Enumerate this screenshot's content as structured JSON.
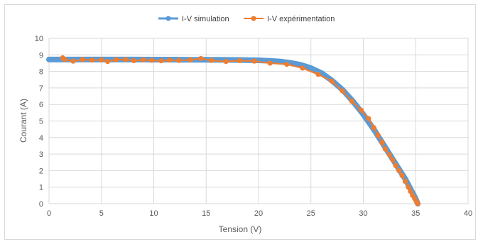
{
  "chart_data": {
    "type": "line",
    "xlabel": "Tension (V)",
    "ylabel": "Courant (A)",
    "xlim": [
      0,
      40
    ],
    "ylim": [
      0,
      10
    ],
    "xticks": [
      0,
      5,
      10,
      15,
      20,
      25,
      30,
      35,
      40
    ],
    "yticks": [
      0,
      1,
      2,
      3,
      4,
      5,
      6,
      7,
      8,
      9,
      10
    ],
    "grid": true,
    "legend_position": "top",
    "series": [
      {
        "name": "I-V simulation",
        "color": "#5b9bd5",
        "marker": "circle",
        "x": [
          0,
          2,
          4,
          6,
          8,
          10,
          12,
          14,
          16,
          18,
          20,
          21,
          22,
          23,
          24,
          25,
          26,
          27,
          28,
          29,
          30,
          31,
          32,
          33,
          34,
          34.5,
          35,
          35.2
        ],
        "y": [
          8.72,
          8.72,
          8.72,
          8.72,
          8.72,
          8.71,
          8.71,
          8.7,
          8.7,
          8.69,
          8.67,
          8.64,
          8.6,
          8.52,
          8.4,
          8.2,
          7.9,
          7.45,
          6.9,
          6.2,
          5.4,
          4.5,
          3.5,
          2.5,
          1.5,
          0.9,
          0.3,
          0
        ]
      },
      {
        "name": "I-V expérimentation",
        "color": "#ed7d31",
        "marker": "circle",
        "x": [
          1.3,
          1.5,
          2.3,
          3.2,
          4.1,
          5.0,
          5.6,
          6.4,
          7.3,
          8.1,
          9.0,
          9.8,
          10.7,
          11.5,
          12.4,
          13.5,
          14.5,
          15.5,
          16.9,
          18.2,
          19.6,
          21.1,
          22.7,
          24.2,
          25.7,
          27.0,
          28.0,
          28.9,
          29.8,
          30.5,
          31.0,
          31.4,
          31.8,
          32.1,
          32.5,
          32.8,
          33.1,
          33.4,
          33.7,
          34.0,
          34.3,
          34.5,
          34.7,
          34.9,
          35.1,
          35.2
        ],
        "y": [
          8.82,
          8.72,
          8.62,
          8.72,
          8.68,
          8.7,
          8.6,
          8.71,
          8.72,
          8.65,
          8.7,
          8.67,
          8.64,
          8.68,
          8.66,
          8.7,
          8.78,
          8.66,
          8.6,
          8.65,
          8.62,
          8.5,
          8.43,
          8.2,
          7.82,
          7.4,
          6.82,
          6.2,
          5.65,
          5.15,
          4.6,
          4.15,
          3.7,
          3.3,
          2.95,
          2.65,
          2.3,
          2.0,
          1.7,
          1.35,
          1.0,
          0.75,
          0.5,
          0.3,
          0.1,
          0
        ]
      }
    ]
  }
}
